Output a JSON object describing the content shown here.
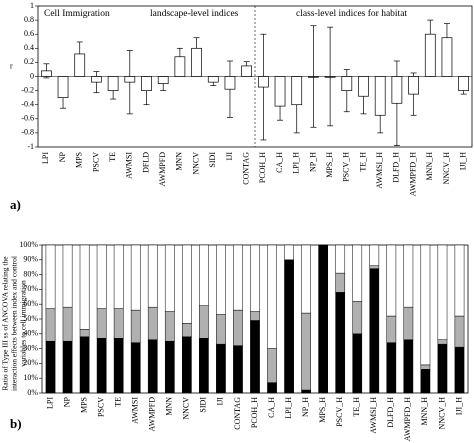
{
  "chart_data": [
    {
      "type": "errorbar",
      "ylabel": "r",
      "panel_label": "a)",
      "annotations": [
        "Cell Immigration",
        "landscape-level indices",
        "class-level indices for habitat"
      ],
      "categories": [
        "LPI",
        "NP",
        "MPS",
        "PSCV",
        "TE",
        "AWMSI",
        "DFLD",
        "AWMPFD",
        "MNN",
        "NNCV",
        "SIDI",
        "IJI",
        "CONTAG",
        "PCOH_H",
        "CA_H",
        "LPI_H",
        "NP_H",
        "MPS_H",
        "PSCV_H",
        "TE_H",
        "AWMSI_H",
        "DLFD_H",
        "AWMPFD_H",
        "MNN_H",
        "NNCV_H",
        "IJI_H"
      ],
      "values": [
        0.08,
        -0.3,
        0.32,
        -0.08,
        -0.2,
        -0.08,
        -0.2,
        -0.1,
        0.28,
        0.4,
        -0.08,
        -0.18,
        0.15,
        -0.15,
        -0.42,
        -0.4,
        0,
        0,
        -0.2,
        -0.28,
        -0.55,
        -0.38,
        -0.25,
        0.6,
        0.55,
        -0.2
      ],
      "errors": [
        0.1,
        0.15,
        0.17,
        0.15,
        0.12,
        0.45,
        0.2,
        0.1,
        0.12,
        0.15,
        0.05,
        0.4,
        0.06,
        0.75,
        0.2,
        0.4,
        0.72,
        0.7,
        0.3,
        0.25,
        0.25,
        0.6,
        0.3,
        0.2,
        0.2,
        0.05
      ],
      "color": "#ffffff",
      "ylim": [
        -1,
        1
      ],
      "yticks": [
        -1,
        -0.8,
        -0.6,
        -0.4,
        -0.2,
        0,
        0.2,
        0.4,
        0.6,
        0.8,
        1
      ]
    },
    {
      "type": "stacked_bar",
      "ylabel": "Ratio of Type III ss of ANCOVA relating the interaction effects between index and control variables to cell immigration",
      "panel_label": "b)",
      "categories": [
        "LPI",
        "NP",
        "MPS",
        "PSCV",
        "TE",
        "AWMSI",
        "AWMPFD",
        "MNN",
        "NNCV",
        "SIDI",
        "IJI",
        "CONTAG",
        "PCOH_H",
        "CA_H",
        "LPI_H",
        "NP_H",
        "MPS_H",
        "PSCV_H",
        "TE_H",
        "AWMSI_H",
        "DLFD_H",
        "AWMPFD_H",
        "MNN_H",
        "NNCV_H",
        "IJI_H"
      ],
      "series": [
        {
          "color": "#000000",
          "values": [
            35,
            35,
            38,
            37,
            37,
            34,
            36,
            35,
            38,
            37,
            33,
            32,
            49,
            7,
            90,
            2,
            100,
            68,
            40,
            84,
            34,
            36,
            16,
            33,
            31
          ]
        },
        {
          "color": "#b0b0b0",
          "values": [
            22,
            23,
            5,
            20,
            20,
            22,
            22,
            20,
            9,
            22,
            20,
            24,
            6,
            23,
            0,
            52,
            0,
            13,
            22,
            2,
            18,
            22,
            3,
            3,
            21
          ]
        },
        {
          "color": "#ffffff",
          "values": [
            43,
            42,
            57,
            43,
            43,
            44,
            42,
            45,
            53,
            41,
            47,
            44,
            45,
            70,
            10,
            46,
            0,
            19,
            38,
            14,
            48,
            42,
            81,
            64,
            48
          ]
        }
      ],
      "ylim": [
        0,
        100
      ],
      "yticks": [
        {
          "value": 0,
          "label": "0%"
        },
        {
          "value": 10,
          "label": "10%"
        },
        {
          "value": 20,
          "label": "20%"
        },
        {
          "value": 30,
          "label": "30%"
        },
        {
          "value": 40,
          "label": "40%"
        },
        {
          "value": 50,
          "label": "50%"
        },
        {
          "value": 60,
          "label": "60%"
        },
        {
          "value": 70,
          "label": "70%"
        },
        {
          "value": 80,
          "label": "80%"
        },
        {
          "value": 90,
          "label": "90%"
        },
        {
          "value": 100,
          "label": "100%"
        }
      ]
    }
  ]
}
